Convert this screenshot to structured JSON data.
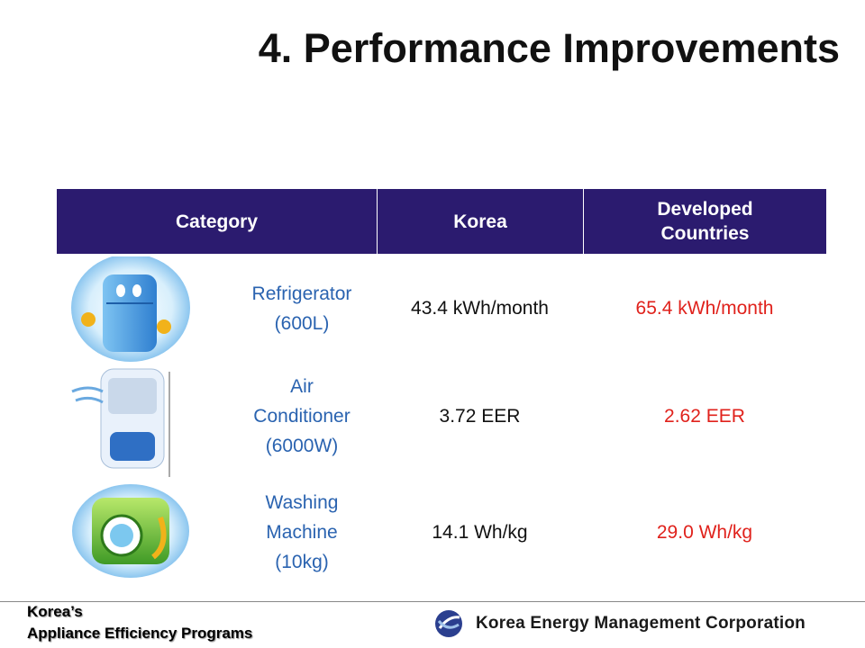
{
  "header": {
    "title": "4. Performance Improvements"
  },
  "table": {
    "columns": [
      "Category",
      "Korea",
      "Developed Countries"
    ],
    "rows": [
      [
        "Refrigerator\n(600L)",
        "43.4 kWh/month",
        "65.4 kWh/month"
      ],
      [
        "Air\nConditioner\n(6000W)",
        "3.72 EER",
        "2.62 EER"
      ],
      [
        "Washing\nMachine\n(10kg)",
        "14.1 Wh/kg",
        "29.0 Wh/kg"
      ]
    ]
  },
  "footer": {
    "program": [
      "Korea’s",
      "Appliance Efficiency Programs"
    ],
    "organization": "Korea Energy Management Corporation"
  }
}
